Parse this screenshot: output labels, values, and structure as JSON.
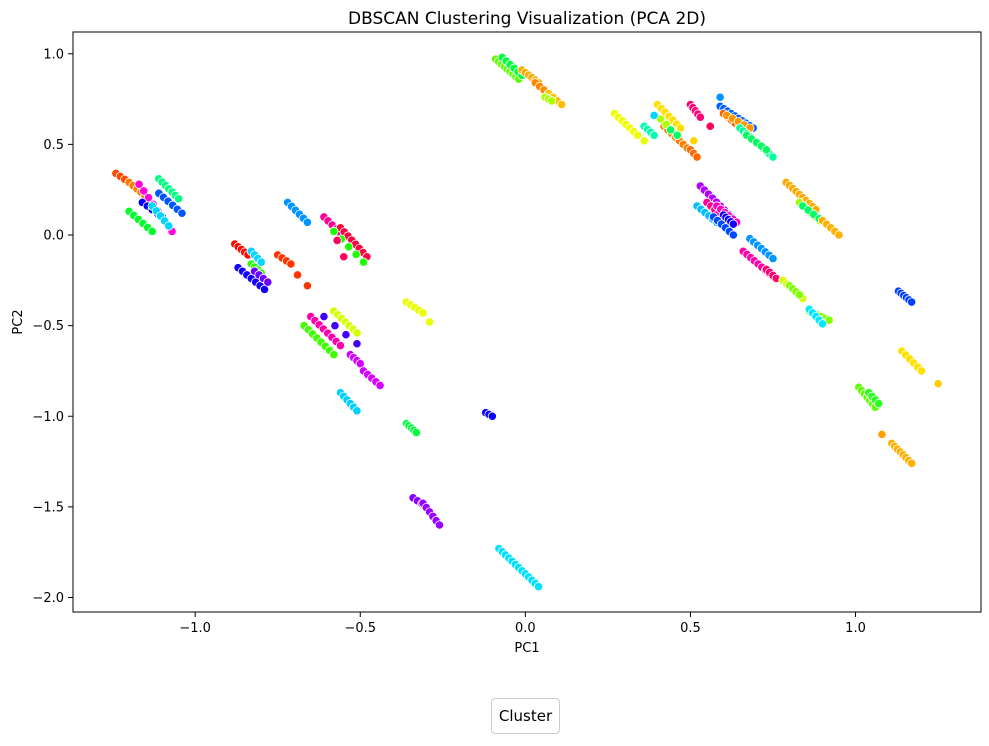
{
  "chart_data": {
    "type": "scatter",
    "title": "DBSCAN Clustering Visualization (PCA 2D)",
    "xlabel": "PC1",
    "ylabel": "PC2",
    "xlim": [
      -1.37,
      1.38
    ],
    "ylim": [
      -2.08,
      1.12
    ],
    "xticks": [
      -1.0,
      -0.5,
      0.0,
      0.5,
      1.0
    ],
    "xtick_labels": [
      "−1.0",
      "−0.5",
      "0.0",
      "0.5",
      "1.0"
    ],
    "yticks": [
      1.0,
      0.5,
      0.0,
      -0.5,
      -1.0,
      -1.5,
      -2.0
    ],
    "ytick_labels": [
      "1.0",
      "0.5",
      "0.0",
      "−0.5",
      "−1.0",
      "−1.5",
      "−2.0"
    ],
    "grid": false,
    "legend": {
      "title": "Cluster",
      "placement": "bottom-center"
    },
    "marker_edge_color": "#ffffff",
    "segments": [
      {
        "x0": -1.24,
        "y0": 0.34,
        "x1": -1.16,
        "y1": 0.24,
        "n": 7,
        "color": "#ff4a00"
      },
      {
        "x0": -1.2,
        "y0": 0.29,
        "x1": -1.14,
        "y1": 0.2,
        "n": 6,
        "color": "#ff7a00"
      },
      {
        "x0": -1.17,
        "y0": 0.28,
        "x1": -1.07,
        "y1": 0.02,
        "n": 8,
        "color": "#ff00dd"
      },
      {
        "x0": -1.11,
        "y0": 0.31,
        "x1": -1.05,
        "y1": 0.2,
        "n": 7,
        "color": "#00ff7f"
      },
      {
        "x0": -1.11,
        "y0": 0.23,
        "x1": -1.04,
        "y1": 0.12,
        "n": 6,
        "color": "#0055ff"
      },
      {
        "x0": -1.16,
        "y0": 0.18,
        "x1": -1.1,
        "y1": 0.1,
        "n": 5,
        "color": "#0000ff"
      },
      {
        "x0": -1.13,
        "y0": 0.16,
        "x1": -1.08,
        "y1": 0.05,
        "n": 5,
        "color": "#00d5ff"
      },
      {
        "x0": -1.2,
        "y0": 0.13,
        "x1": -1.13,
        "y1": 0.02,
        "n": 6,
        "color": "#00ff2a"
      },
      {
        "x0": -0.88,
        "y0": -0.05,
        "x1": -0.84,
        "y1": -0.11,
        "n": 5,
        "color": "#ff0a00"
      },
      {
        "x0": -0.83,
        "y0": -0.09,
        "x1": -0.8,
        "y1": -0.15,
        "n": 4,
        "color": "#00d5ff"
      },
      {
        "x0": -0.83,
        "y0": -0.16,
        "x1": -0.8,
        "y1": -0.21,
        "n": 4,
        "color": "#2aff00"
      },
      {
        "x0": -0.87,
        "y0": -0.18,
        "x1": -0.79,
        "y1": -0.3,
        "n": 7,
        "color": "#1500ff"
      },
      {
        "x0": -0.82,
        "y0": -0.2,
        "x1": -0.78,
        "y1": -0.26,
        "n": 4,
        "color": "#6a00ff"
      },
      {
        "x0": -0.75,
        "y0": -0.11,
        "x1": -0.71,
        "y1": -0.16,
        "n": 4,
        "color": "#ff3500"
      },
      {
        "x0": -0.69,
        "y0": -0.22,
        "x1": -0.66,
        "y1": -0.28,
        "n": 2,
        "color": "#ff3500"
      },
      {
        "x0": -0.72,
        "y0": 0.18,
        "x1": -0.66,
        "y1": 0.07,
        "n": 6,
        "color": "#0095ff"
      },
      {
        "x0": -0.61,
        "y0": 0.1,
        "x1": -0.56,
        "y1": 0.01,
        "n": 5,
        "color": "#ff0095"
      },
      {
        "x0": -0.56,
        "y0": 0.04,
        "x1": -0.48,
        "y1": -0.12,
        "n": 8,
        "color": "#ff003f"
      },
      {
        "x0": -0.58,
        "y0": 0.02,
        "x1": -0.49,
        "y1": -0.15,
        "n": 5,
        "color": "#1fff00"
      },
      {
        "x0": -0.57,
        "y0": -0.03,
        "x1": -0.55,
        "y1": -0.12,
        "n": 2,
        "color": "#ff0060"
      },
      {
        "x0": -0.58,
        "y0": -0.42,
        "x1": -0.51,
        "y1": -0.54,
        "n": 7,
        "color": "#d5ff00"
      },
      {
        "x0": -0.65,
        "y0": -0.45,
        "x1": -0.56,
        "y1": -0.61,
        "n": 8,
        "color": "#ff00aa"
      },
      {
        "x0": -0.67,
        "y0": -0.5,
        "x1": -0.58,
        "y1": -0.66,
        "n": 8,
        "color": "#3fff00"
      },
      {
        "x0": -0.61,
        "y0": -0.45,
        "x1": -0.51,
        "y1": -0.6,
        "n": 4,
        "color": "#4000ff"
      },
      {
        "x0": -0.53,
        "y0": -0.66,
        "x1": -0.5,
        "y1": -0.71,
        "n": 4,
        "color": "#d500ff"
      },
      {
        "x0": -0.49,
        "y0": -0.75,
        "x1": -0.44,
        "y1": -0.83,
        "n": 5,
        "color": "#d500ff"
      },
      {
        "x0": -0.56,
        "y0": -0.87,
        "x1": -0.51,
        "y1": -0.97,
        "n": 6,
        "color": "#00d0ff"
      },
      {
        "x0": -0.36,
        "y0": -0.37,
        "x1": -0.31,
        "y1": -0.43,
        "n": 5,
        "color": "#eaff00"
      },
      {
        "x0": -0.29,
        "y0": -0.48,
        "x1": -0.29,
        "y1": -0.48,
        "n": 1,
        "color": "#eaff00"
      },
      {
        "x0": -0.36,
        "y0": -1.04,
        "x1": -0.33,
        "y1": -1.09,
        "n": 5,
        "color": "#00ff40"
      },
      {
        "x0": -0.34,
        "y0": -1.45,
        "x1": -0.3,
        "y1": -1.5,
        "n": 4,
        "color": "#8a00ff"
      },
      {
        "x0": -0.31,
        "y0": -1.48,
        "x1": -0.26,
        "y1": -1.6,
        "n": 6,
        "color": "#9a00ff"
      },
      {
        "x0": -0.12,
        "y0": -0.98,
        "x1": -0.1,
        "y1": -1.0,
        "n": 3,
        "color": "#0a00ff"
      },
      {
        "x0": -0.08,
        "y0": -1.73,
        "x1": 0.04,
        "y1": -1.94,
        "n": 13,
        "color": "#00e1ff"
      },
      {
        "x0": -0.09,
        "y0": 0.97,
        "x1": -0.02,
        "y1": 0.86,
        "n": 9,
        "color": "#5fff00"
      },
      {
        "x0": -0.07,
        "y0": 0.98,
        "x1": -0.01,
        "y1": 0.88,
        "n": 6,
        "color": "#00ff40"
      },
      {
        "x0": -0.01,
        "y0": 0.91,
        "x1": 0.04,
        "y1": 0.84,
        "n": 6,
        "color": "#ffaa00"
      },
      {
        "x0": 0.03,
        "y0": 0.84,
        "x1": 0.07,
        "y1": 0.78,
        "n": 4,
        "color": "#ff8a00"
      },
      {
        "x0": 0.07,
        "y0": 0.78,
        "x1": 0.11,
        "y1": 0.72,
        "n": 4,
        "color": "#ffbf00"
      },
      {
        "x0": 0.06,
        "y0": 0.76,
        "x1": 0.08,
        "y1": 0.74,
        "n": 3,
        "color": "#aaff00"
      },
      {
        "x0": 0.27,
        "y0": 0.67,
        "x1": 0.34,
        "y1": 0.55,
        "n": 7,
        "color": "#f0ff00"
      },
      {
        "x0": 0.36,
        "y0": 0.6,
        "x1": 0.39,
        "y1": 0.55,
        "n": 4,
        "color": "#00ffb0"
      },
      {
        "x0": 0.36,
        "y0": 0.52,
        "x1": 0.36,
        "y1": 0.52,
        "n": 1,
        "color": "#eaff00"
      },
      {
        "x0": 0.4,
        "y0": 0.72,
        "x1": 0.47,
        "y1": 0.59,
        "n": 7,
        "color": "#ffe000"
      },
      {
        "x0": 0.42,
        "y0": 0.6,
        "x1": 0.49,
        "y1": 0.48,
        "n": 7,
        "color": "#ff8000"
      },
      {
        "x0": 0.41,
        "y0": 0.64,
        "x1": 0.46,
        "y1": 0.55,
        "n": 4,
        "color": "#aaff00"
      },
      {
        "x0": 0.44,
        "y0": 0.58,
        "x1": 0.46,
        "y1": 0.55,
        "n": 2,
        "color": "#00ff60"
      },
      {
        "x0": 0.5,
        "y0": 0.47,
        "x1": 0.52,
        "y1": 0.43,
        "n": 3,
        "color": "#ff6a00"
      },
      {
        "x0": 0.51,
        "y0": 0.52,
        "x1": 0.51,
        "y1": 0.52,
        "n": 1,
        "color": "#ffd500"
      },
      {
        "x0": 0.39,
        "y0": 0.66,
        "x1": 0.39,
        "y1": 0.66,
        "n": 1,
        "color": "#00d5ff"
      },
      {
        "x0": 0.5,
        "y0": 0.72,
        "x1": 0.53,
        "y1": 0.65,
        "n": 5,
        "color": "#ff0077"
      },
      {
        "x0": 0.56,
        "y0": 0.6,
        "x1": 0.56,
        "y1": 0.6,
        "n": 1,
        "color": "#ff0055"
      },
      {
        "x0": 0.59,
        "y0": 0.76,
        "x1": 0.59,
        "y1": 0.76,
        "n": 1,
        "color": "#0095ff"
      },
      {
        "x0": 0.59,
        "y0": 0.71,
        "x1": 0.69,
        "y1": 0.59,
        "n": 10,
        "color": "#0060ff"
      },
      {
        "x0": 0.6,
        "y0": 0.67,
        "x1": 0.66,
        "y1": 0.58,
        "n": 6,
        "color": "#ff6000"
      },
      {
        "x0": 0.61,
        "y0": 0.66,
        "x1": 0.68,
        "y1": 0.59,
        "n": 5,
        "color": "#ff9500"
      },
      {
        "x0": 0.65,
        "y0": 0.59,
        "x1": 0.75,
        "y1": 0.43,
        "n": 11,
        "color": "#00ff9a"
      },
      {
        "x0": 0.67,
        "y0": 0.55,
        "x1": 0.73,
        "y1": 0.47,
        "n": 5,
        "color": "#00ff5f"
      },
      {
        "x0": 0.53,
        "y0": 0.27,
        "x1": 0.64,
        "y1": 0.07,
        "n": 10,
        "color": "#b000ff"
      },
      {
        "x0": 0.55,
        "y0": 0.18,
        "x1": 0.63,
        "y1": 0.06,
        "n": 8,
        "color": "#6000ff"
      },
      {
        "x0": 0.55,
        "y0": 0.18,
        "x1": 0.61,
        "y1": 0.08,
        "n": 6,
        "color": "#ff0095"
      },
      {
        "x0": 0.58,
        "y0": 0.16,
        "x1": 0.64,
        "y1": 0.07,
        "n": 6,
        "color": "#ff00c0"
      },
      {
        "x0": 0.6,
        "y0": 0.11,
        "x1": 0.63,
        "y1": 0.06,
        "n": 5,
        "color": "#1500ff"
      },
      {
        "x0": 0.52,
        "y0": 0.16,
        "x1": 0.58,
        "y1": 0.07,
        "n": 6,
        "color": "#00c0ff"
      },
      {
        "x0": 0.57,
        "y0": 0.1,
        "x1": 0.63,
        "y1": 0.0,
        "n": 6,
        "color": "#004aff"
      },
      {
        "x0": 0.68,
        "y0": -0.02,
        "x1": 0.75,
        "y1": -0.13,
        "n": 7,
        "color": "#0095ff"
      },
      {
        "x0": 0.66,
        "y0": -0.09,
        "x1": 0.75,
        "y1": -0.23,
        "n": 9,
        "color": "#ff00aa"
      },
      {
        "x0": 0.73,
        "y0": -0.19,
        "x1": 0.76,
        "y1": -0.24,
        "n": 4,
        "color": "#ff0070"
      },
      {
        "x0": 0.78,
        "y0": -0.25,
        "x1": 0.84,
        "y1": -0.35,
        "n": 6,
        "color": "#d5ff00"
      },
      {
        "x0": 0.8,
        "y0": -0.28,
        "x1": 0.83,
        "y1": -0.33,
        "n": 4,
        "color": "#80ff00"
      },
      {
        "x0": 0.86,
        "y0": -0.42,
        "x1": 0.92,
        "y1": -0.47,
        "n": 6,
        "color": "#80ff00"
      },
      {
        "x0": 0.86,
        "y0": -0.41,
        "x1": 0.9,
        "y1": -0.49,
        "n": 5,
        "color": "#00eaff"
      },
      {
        "x0": 0.79,
        "y0": 0.29,
        "x1": 0.88,
        "y1": 0.14,
        "n": 10,
        "color": "#ffaa00"
      },
      {
        "x0": 0.83,
        "y0": 0.18,
        "x1": 0.89,
        "y1": 0.08,
        "n": 6,
        "color": "#9fff00"
      },
      {
        "x0": 0.84,
        "y0": 0.16,
        "x1": 0.89,
        "y1": 0.09,
        "n": 4,
        "color": "#00ff60"
      },
      {
        "x0": 0.9,
        "y0": 0.08,
        "x1": 0.95,
        "y1": 0.0,
        "n": 5,
        "color": "#ffb000"
      },
      {
        "x0": 1.13,
        "y0": -0.31,
        "x1": 1.17,
        "y1": -0.37,
        "n": 6,
        "color": "#0040ff"
      },
      {
        "x0": 1.14,
        "y0": -0.64,
        "x1": 1.2,
        "y1": -0.75,
        "n": 6,
        "color": "#ffe000"
      },
      {
        "x0": 1.25,
        "y0": -0.82,
        "x1": 1.25,
        "y1": -0.82,
        "n": 1,
        "color": "#ffd000"
      },
      {
        "x0": 1.01,
        "y0": -0.84,
        "x1": 1.06,
        "y1": -0.95,
        "n": 7,
        "color": "#5fff00"
      },
      {
        "x0": 1.04,
        "y0": -0.87,
        "x1": 1.07,
        "y1": -0.93,
        "n": 4,
        "color": "#2aff20"
      },
      {
        "x0": 1.08,
        "y0": -1.1,
        "x1": 1.08,
        "y1": -1.1,
        "n": 1,
        "color": "#ffa000"
      },
      {
        "x0": 1.11,
        "y0": -1.15,
        "x1": 1.17,
        "y1": -1.26,
        "n": 8,
        "color": "#ffb000"
      }
    ]
  }
}
